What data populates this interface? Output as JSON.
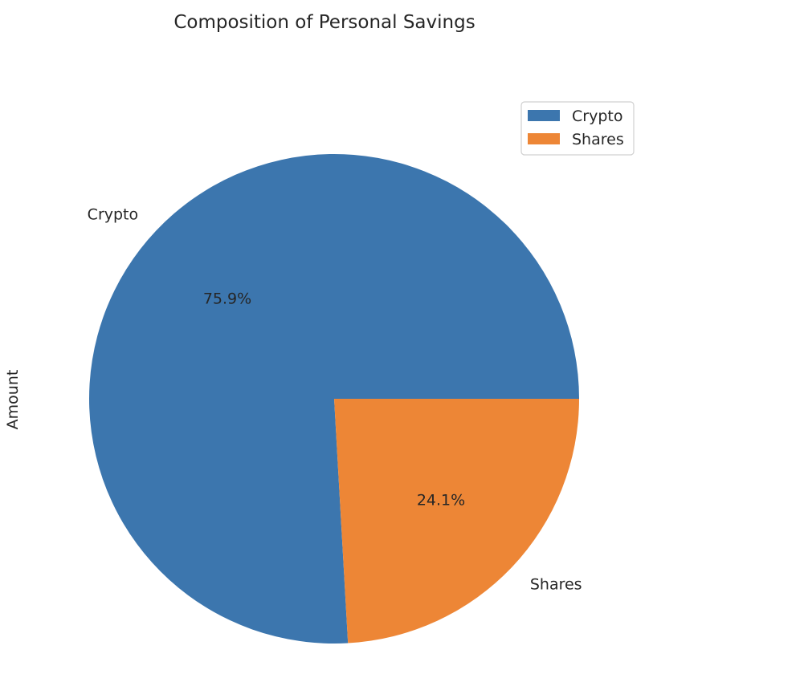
{
  "chart_data": {
    "type": "pie",
    "title": "Composition of Personal Savings",
    "ylabel": "Amount",
    "categories": [
      "Crypto",
      "Shares"
    ],
    "values": [
      75.9,
      24.1
    ],
    "value_labels": [
      "75.9%",
      "24.1%"
    ],
    "colors": [
      "#3c76ae",
      "#ed8636"
    ],
    "legend": {
      "entries": [
        "Crypto",
        "Shares"
      ],
      "placement": "upper-right"
    }
  }
}
